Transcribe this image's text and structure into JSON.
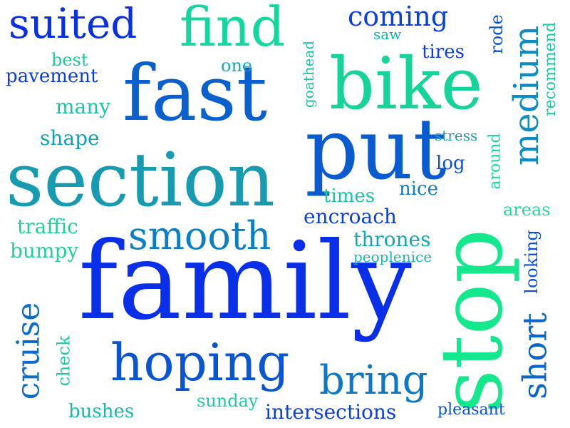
{
  "words": [
    {
      "text": "family",
      "color": "#0a2fe8"
    },
    {
      "text": "section",
      "color": "#179bb0"
    },
    {
      "text": "fast",
      "color": "#0a60cf"
    },
    {
      "text": "bike",
      "color": "#16d39a"
    },
    {
      "text": "put",
      "color": "#0a5ad0"
    },
    {
      "text": "stop",
      "color": "#14e88c"
    },
    {
      "text": "find",
      "color": "#12d8a0"
    },
    {
      "text": "suited",
      "color": "#0a30e3"
    },
    {
      "text": "smooth",
      "color": "#0b7fc6"
    },
    {
      "text": "hoping",
      "color": "#0a55d2"
    },
    {
      "text": "bring",
      "color": "#0c78c6"
    },
    {
      "text": "medium",
      "color": "#0c8cc0"
    },
    {
      "text": "short",
      "color": "#0a66cc"
    },
    {
      "text": "cruise",
      "color": "#0b6ccc"
    },
    {
      "text": "coming",
      "color": "#0a40de"
    },
    {
      "text": "pavement",
      "color": "#0a3ede"
    },
    {
      "text": "best",
      "color": "#1bc8a2"
    },
    {
      "text": "one",
      "color": "#10aab6"
    },
    {
      "text": "many",
      "color": "#1bc4a6"
    },
    {
      "text": "shape",
      "color": "#10a0b8"
    },
    {
      "text": "goathead",
      "color": "#1bc0a6"
    },
    {
      "text": "saw",
      "color": "#12b4b0"
    },
    {
      "text": "tires",
      "color": "#0a3ede"
    },
    {
      "text": "rode",
      "color": "#0a50d6"
    },
    {
      "text": "recommend",
      "color": "#18c8a0"
    },
    {
      "text": "stress",
      "color": "#1a9ab4"
    },
    {
      "text": "log",
      "color": "#0a50d6"
    },
    {
      "text": "around",
      "color": "#1bd4a0"
    },
    {
      "text": "times",
      "color": "#18c8a0"
    },
    {
      "text": "nice",
      "color": "#0c7cc4"
    },
    {
      "text": "areas",
      "color": "#22d8a0"
    },
    {
      "text": "encroach",
      "color": "#0a40de"
    },
    {
      "text": "traffic",
      "color": "#20d0a0"
    },
    {
      "text": "bumpy",
      "color": "#20d0a0"
    },
    {
      "text": "thrones",
      "color": "#10aab6"
    },
    {
      "text": "peoplenice",
      "color": "#14bcac"
    },
    {
      "text": "looking",
      "color": "#0a50d6"
    },
    {
      "text": "check",
      "color": "#20c8a8"
    },
    {
      "text": "sunday",
      "color": "#20c8a8"
    },
    {
      "text": "bushes",
      "color": "#14b8b0"
    },
    {
      "text": "intersections",
      "color": "#0a40de"
    },
    {
      "text": "pleasant",
      "color": "#0a50d6"
    }
  ]
}
